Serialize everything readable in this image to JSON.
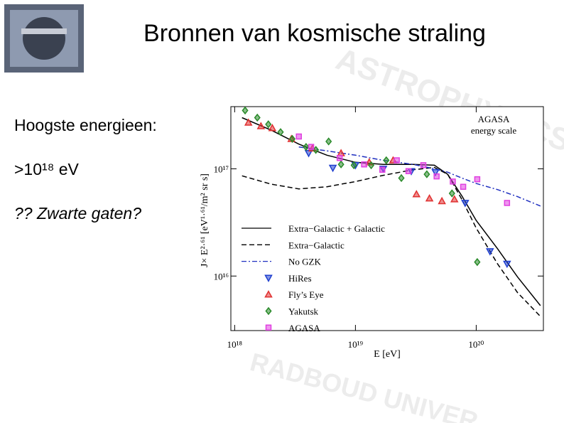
{
  "slide": {
    "title": "Bronnen van kosmische straling",
    "bullets": [
      "Hoogste energieen:",
      ">10¹⁸ eV",
      "?? Zwarte gaten?"
    ],
    "watermark": [
      "ASTROPHYSICS",
      "RADBOUD UNIVER"
    ]
  },
  "chart_data": {
    "type": "line",
    "log_x": true,
    "log_y": true,
    "xlabel": "E  [eV]",
    "ylabel": "J× E²·⁶¹  [eV¹·⁶¹/m² sr s]",
    "annotation": [
      "AGASA",
      "energy scale"
    ],
    "xlim": [
      9.3e+17,
      3.6e+20
    ],
    "ylim": [
      3100000000000000.0,
      3.8e+17
    ],
    "xticks": [
      {
        "value": 1e+18,
        "label": "10¹⁸"
      },
      {
        "value": 1e+19,
        "label": "10¹⁹"
      },
      {
        "value": 1e+20,
        "label": "10²⁰"
      }
    ],
    "yticks": [
      {
        "value": 1e+16,
        "label": "10¹⁶"
      },
      {
        "value": 1e+17,
        "label": "10¹⁷"
      }
    ],
    "series": [
      {
        "name": "Extra−Galactic + Galactic",
        "color": "#000000",
        "mode": "line",
        "style": "solid",
        "x": [
          1.15e+18,
          2e+18,
          3.4e+18,
          5.8e+18,
          1e+19,
          1.7e+19,
          3e+19,
          4.5e+19,
          5.8e+19,
          7.6e+19,
          1e+20,
          1.5e+20,
          2.2e+20,
          3.4e+20
        ],
        "values": [
          3e+17,
          2.3e+17,
          1.7e+17,
          1.34e+17,
          1.15e+17,
          1.1e+17,
          1.1e+17,
          1.08e+17,
          8.9e+16,
          5.6e+16,
          3.3e+16,
          1.8e+16,
          9800000000000000.0,
          5300000000000000.0
        ]
      },
      {
        "name": "Extra−Galactic",
        "color": "#000000",
        "mode": "line",
        "style": "dashed",
        "x": [
          1.15e+18,
          2e+18,
          3.4e+18,
          5.8e+18,
          1e+19,
          1.7e+19,
          3e+19,
          4.5e+19,
          5.8e+19,
          7.6e+19,
          1e+20,
          1.5e+20,
          2.2e+20,
          3.4e+20
        ],
        "values": [
          8.6e+16,
          7.2e+16,
          6.5e+16,
          6.8e+16,
          7.6e+16,
          8.7e+16,
          9.8e+16,
          1.03e+17,
          8.9e+16,
          5.2e+16,
          2.8e+16,
          1.3e+16,
          7000000000000000.0,
          4200000000000000.0
        ]
      },
      {
        "name": "No GZK",
        "color": "#2030c0",
        "mode": "line",
        "style": "dashdot",
        "x": [
          3.4e+18,
          5.8e+18,
          1e+19,
          1.7e+19,
          3e+19,
          4.5e+19,
          5.8e+19,
          7.6e+19,
          1e+20,
          1.5e+20,
          2.2e+20,
          3.4e+20
        ],
        "values": [
          1.6e+17,
          1.47e+17,
          1.34e+17,
          1.2e+17,
          1.1e+17,
          1e+17,
          9.3e+16,
          8.2e+16,
          7.3e+16,
          6.4e+16,
          5.5e+16,
          4.5e+16
        ]
      },
      {
        "name": "HiRes",
        "color": "#1f3fcf",
        "mode": "markers",
        "marker": "triangle-down",
        "x": [
          4.1e+18,
          6.5e+18,
          1e+19,
          1.7e+19,
          2.9e+19,
          4.6e+19,
          8.1e+19,
          1.3e+20,
          1.8e+20
        ],
        "values": [
          1.4e+17,
          1.02e+17,
          1.08e+17,
          1e+17,
          9.5e+16,
          9.3e+16,
          4.8e+16,
          1.7e+16,
          1.3e+16
        ]
      },
      {
        "name": "Fly’s Eye",
        "color": "#e03030",
        "mode": "markers",
        "marker": "triangle-up",
        "x": [
          1.3e+18,
          1.65e+18,
          2.05e+18,
          2.95e+18,
          4.4e+18,
          7.6e+18,
          1.3e+19,
          2.05e+19,
          3.2e+19,
          4.1e+19,
          5.2e+19,
          6.6e+19
        ],
        "values": [
          2.7e+17,
          2.5e+17,
          2.4e+17,
          1.9e+17,
          1.55e+17,
          1.4e+17,
          1.15e+17,
          1.2e+17,
          5.8e+16,
          5.3e+16,
          5e+16,
          5.2e+16
        ]
      },
      {
        "name": "Yakutsk",
        "color": "#2a8a2a",
        "mode": "markers",
        "marker": "diamond",
        "x": [
          1.22e+18,
          1.54e+18,
          1.9e+18,
          2.4e+18,
          3e+18,
          3.9e+18,
          4.7e+18,
          6e+18,
          7.6e+18,
          9.7e+18,
          1.35e+19,
          1.8e+19,
          2.4e+19,
          3.9e+19,
          6.3e+19,
          1.02e+20
        ],
        "values": [
          3.5e+17,
          3e+17,
          2.6e+17,
          2.2e+17,
          1.9e+17,
          1.6e+17,
          1.5e+17,
          1.8e+17,
          1.1e+17,
          1.08e+17,
          1.08e+17,
          1.2e+17,
          8.2e+16,
          8.9e+16,
          5.9e+16,
          1.35e+16
        ]
      },
      {
        "name": "AGASA",
        "color": "#e040e0",
        "mode": "markers",
        "marker": "square",
        "x": [
          3.4e+18,
          4.3e+18,
          7.4e+18,
          1.18e+19,
          1.67e+19,
          2.2e+19,
          2.75e+19,
          3.65e+19,
          4.7e+19,
          6.4e+19,
          7.8e+19,
          1.02e+20,
          1.8e+20
        ],
        "values": [
          2e+17,
          1.6e+17,
          1.26e+17,
          1.1e+17,
          9.8e+16,
          1.2e+17,
          9.5e+16,
          1.08e+17,
          8.5e+16,
          7.6e+16,
          6.8e+16,
          8e+16,
          4.8e+16
        ]
      }
    ]
  }
}
